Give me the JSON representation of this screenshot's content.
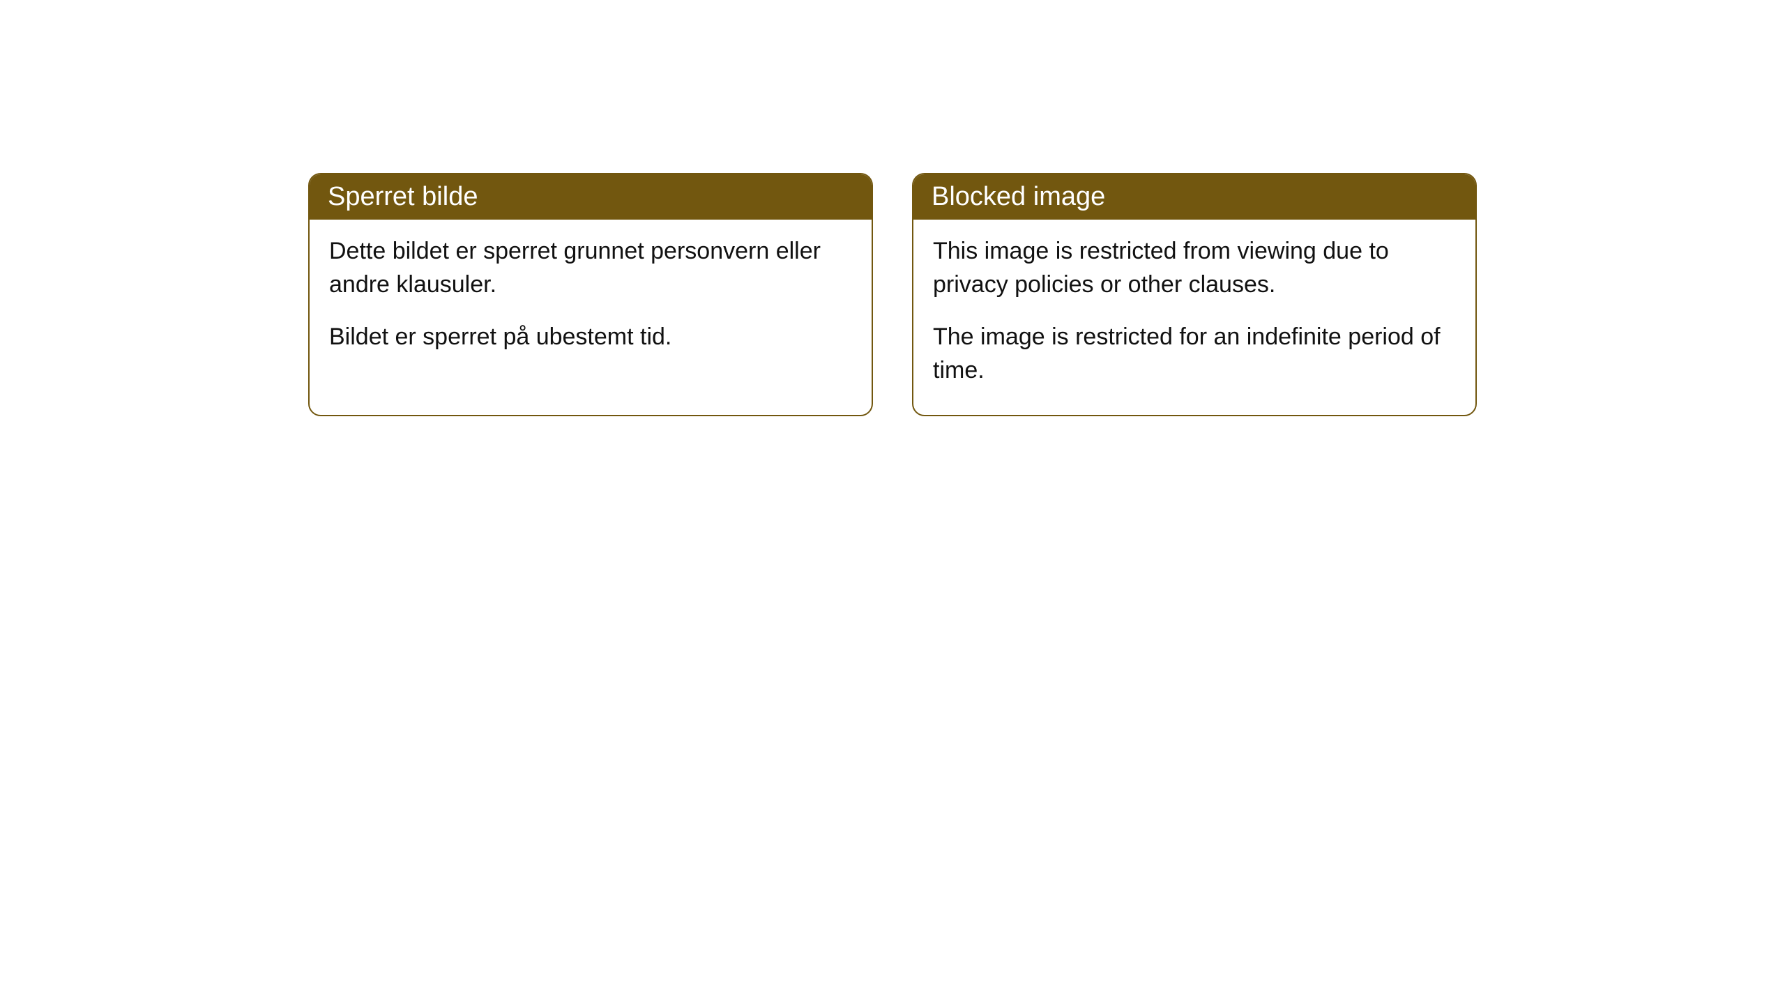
{
  "cards": [
    {
      "title": "Sperret bilde",
      "paragraph1": "Dette bildet er sperret grunnet personvern eller andre klausuler.",
      "paragraph2": "Bildet er sperret på ubestemt tid."
    },
    {
      "title": "Blocked image",
      "paragraph1": "This image is restricted from viewing due to privacy policies or other clauses.",
      "paragraph2": "The image is restricted for an indefinite period of time."
    }
  ],
  "colors": {
    "header_background": "#72570f",
    "header_text": "#ffffff",
    "border": "#72570f",
    "body_text": "#111111",
    "page_background": "#ffffff"
  },
  "border_radius": 18,
  "title_fontsize": 38,
  "body_fontsize": 34
}
